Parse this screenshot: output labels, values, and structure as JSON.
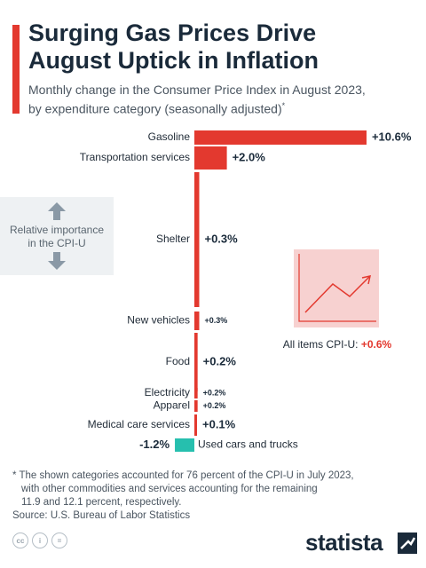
{
  "header": {
    "title_line1": "Surging Gas Prices Drive",
    "title_line2": "August Uptick in Inflation",
    "subtitle_line1": "Monthly change in the Consumer Price Index in August 2023,",
    "subtitle_line2": "by expenditure category (seasonally adjusted)",
    "subtitle_mark": "*"
  },
  "legend": {
    "line1": "Relative importance",
    "line2": "in the CPI-U",
    "arrow_up_icon": "arrow-up-icon",
    "arrow_down_icon": "arrow-down-icon"
  },
  "all_items": {
    "label": "All items CPI-U:",
    "value": "+0.6%",
    "icon": "trend-up-icon"
  },
  "chart_data": {
    "type": "bar",
    "orientation": "horizontal",
    "title": "Monthly change in the Consumer Price Index in August 2023, by expenditure category (seasonally adjusted)",
    "categories": [
      "Gasoline",
      "Transportation services",
      "Shelter",
      "New vehicles",
      "Food",
      "Electricity",
      "Apparel",
      "Medical care services",
      "Used cars and trucks"
    ],
    "values": [
      10.6,
      2.0,
      0.3,
      0.3,
      0.2,
      0.2,
      0.2,
      0.1,
      -1.2
    ],
    "value_labels": [
      "+10.6%",
      "+2.0%",
      "+0.3%",
      "+0.3%",
      "+0.2%",
      "+0.2%",
      "+0.2%",
      "+0.1%",
      "-1.2%"
    ],
    "relative_importance_encoded_as_bar_thickness": true,
    "colors": {
      "positive": "#e3392f",
      "negative": "#26bfae"
    }
  },
  "footnote": {
    "line1": "* The shown categories accounted for 76 percent of the CPI-U in July 2023,",
    "line2": "with other commodities and services accounting for the remaining",
    "line3": "11.9 and 12.1 percent, respectively."
  },
  "source": "Source: U.S. Bureau of Labor Statistics",
  "brand": "statista",
  "license_icons": [
    "cc-icon",
    "by-icon",
    "nd-icon"
  ]
}
